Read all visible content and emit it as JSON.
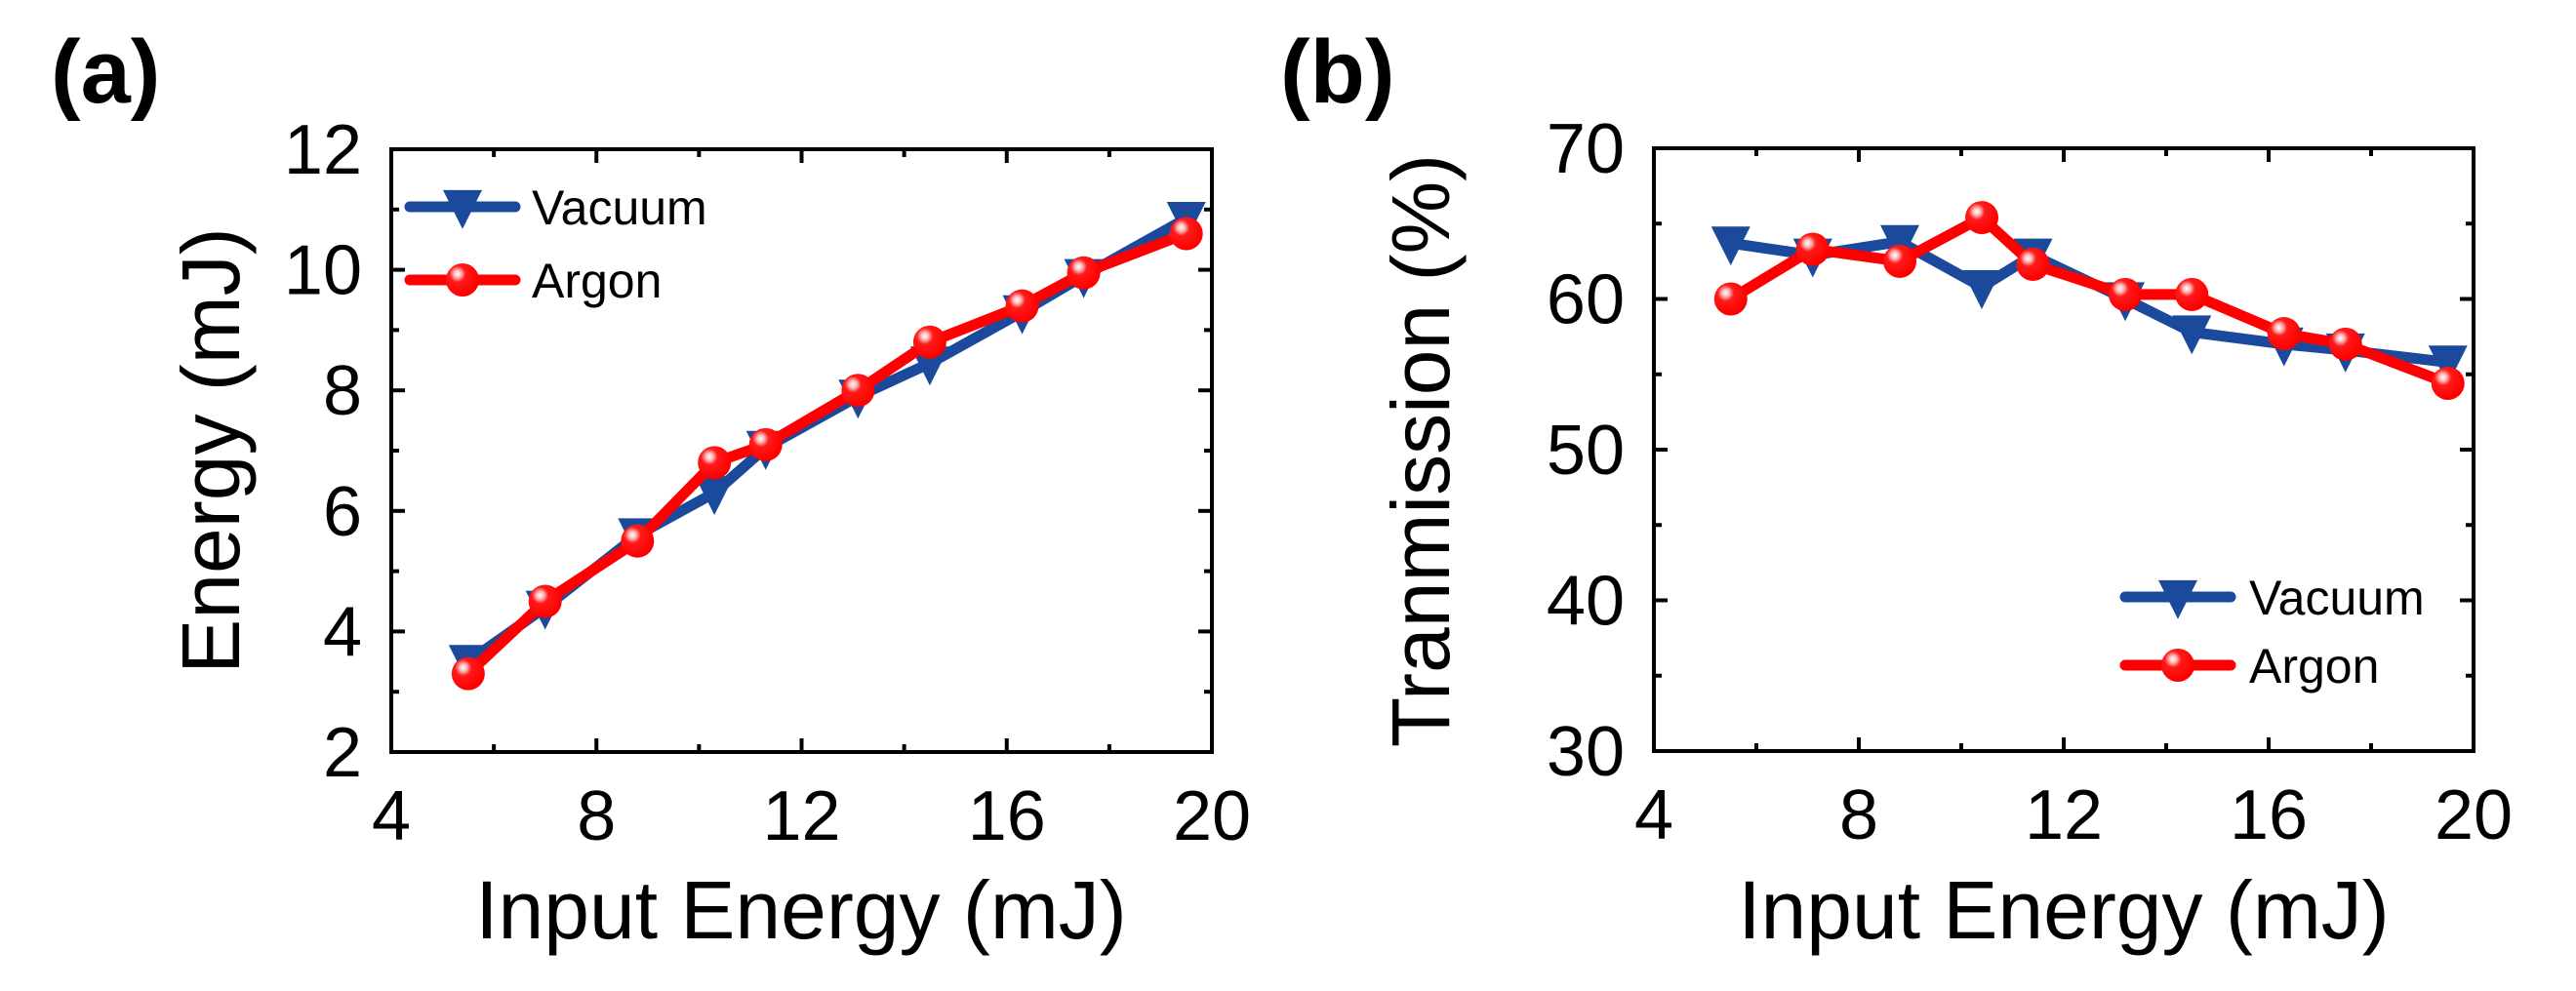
{
  "figure": {
    "series_styles": {
      "Vacuum": {
        "color": "#1B4A9C",
        "marker": "triangle-down"
      },
      "Argon": {
        "color": "#FF0000",
        "marker": "circle"
      }
    }
  },
  "chart_data": [
    {
      "panel_label": "(a)",
      "type": "line",
      "title": "",
      "xlabel": "Input Energy (mJ)",
      "ylabel": "Energy (mJ)",
      "xlim": [
        4,
        20
      ],
      "ylim": [
        2,
        12
      ],
      "xticks": [
        4,
        8,
        12,
        16,
        20
      ],
      "xtick_labels": [
        "4",
        "8",
        "12",
        "16",
        "20"
      ],
      "xminor": [
        6,
        10,
        14,
        18
      ],
      "yticks": [
        2,
        4,
        6,
        8,
        10,
        12
      ],
      "ytick_labels": [
        "2",
        "4",
        "6",
        "8",
        "10",
        "12"
      ],
      "yminor": [
        3,
        5,
        7,
        9,
        11
      ],
      "grid": false,
      "legend_position": "top-left",
      "series": [
        {
          "name": "Vacuum",
          "x": [
            5.5,
            7.0,
            8.8,
            10.3,
            11.3,
            13.1,
            14.5,
            16.3,
            17.5,
            19.5
          ],
          "y": [
            3.5,
            4.4,
            5.6,
            6.3,
            7.05,
            7.9,
            8.45,
            9.3,
            9.9,
            10.85
          ]
        },
        {
          "name": "Argon",
          "x": [
            5.5,
            7.0,
            8.8,
            10.3,
            11.3,
            13.1,
            14.5,
            16.3,
            17.5,
            19.5
          ],
          "y": [
            3.3,
            4.5,
            5.5,
            6.8,
            7.1,
            8.0,
            8.8,
            9.4,
            9.95,
            10.6
          ]
        }
      ]
    },
    {
      "panel_label": "(b)",
      "type": "line",
      "title": "",
      "xlabel": "Input Energy (mJ)",
      "ylabel": "Tranmission (%)",
      "xlim": [
        4,
        20
      ],
      "ylim": [
        30,
        70
      ],
      "xticks": [
        4,
        8,
        12,
        16,
        20
      ],
      "xtick_labels": [
        "4",
        "8",
        "12",
        "16",
        "20"
      ],
      "xminor": [
        6,
        10,
        14,
        18
      ],
      "yticks": [
        30,
        40,
        50,
        60,
        70
      ],
      "ytick_labels": [
        "30",
        "40",
        "50",
        "60",
        "70"
      ],
      "yminor": [
        35,
        45,
        55,
        65
      ],
      "grid": false,
      "legend_position": "bottom-right",
      "series": [
        {
          "name": "Vacuum",
          "x": [
            5.5,
            7.1,
            8.8,
            10.4,
            11.4,
            13.2,
            14.5,
            16.3,
            17.5,
            19.5
          ],
          "y": [
            63.7,
            62.9,
            63.8,
            60.8,
            62.9,
            60.0,
            57.8,
            57.0,
            56.6,
            55.8
          ]
        },
        {
          "name": "Argon",
          "x": [
            5.5,
            7.1,
            8.8,
            10.4,
            11.4,
            13.2,
            14.5,
            16.3,
            17.5,
            19.5
          ],
          "y": [
            60.0,
            63.3,
            62.5,
            65.4,
            62.3,
            60.3,
            60.3,
            57.7,
            57.0,
            54.4
          ]
        }
      ]
    }
  ]
}
